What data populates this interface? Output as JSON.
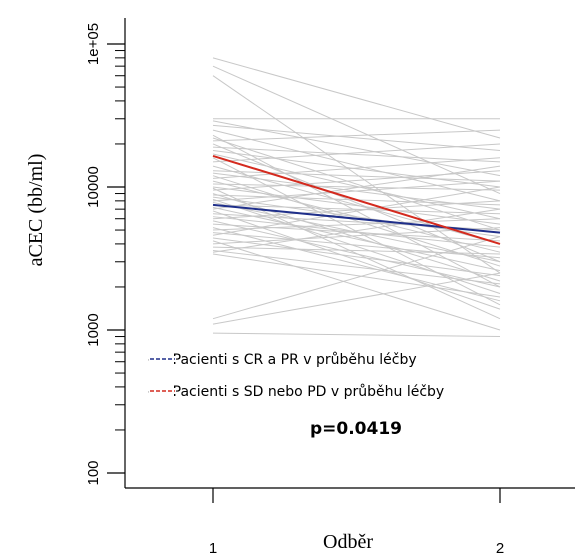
{
  "chart_data": {
    "type": "line",
    "xlabel": "Odběr",
    "ylabel": "aCEC (bb/ml)",
    "scale_y": "log10",
    "ylim": [
      80,
      140000
    ],
    "xlim": [
      0.7,
      2.35
    ],
    "x_ticks": [
      1,
      2
    ],
    "x_tick_labels": [
      "1",
      "2"
    ],
    "y_ticks": [
      100,
      1000,
      10000,
      100000
    ],
    "y_tick_labels": [
      "100",
      "1000",
      "10000",
      "1e+05"
    ],
    "grid": false,
    "legend_position": "bottom-left",
    "legend": [
      {
        "label": "---- Pacienti s CR a PR v průběhu léčby",
        "color": "#1f2f8a"
      },
      {
        "label": "---- Pacienti s SD nebo PD v průběhu léčby",
        "color": "#d42a1e"
      }
    ],
    "annotation": "p=0.0419",
    "series": [
      {
        "x": [
          1,
          2
        ],
        "values": [
          7500,
          4800
        ],
        "color": "#1f2f8a",
        "width": 2
      },
      {
        "x": [
          1,
          2
        ],
        "values": [
          16500,
          4000
        ],
        "color": "#d42a1e",
        "width": 2
      }
    ],
    "patient_color": "#c8c8c8",
    "patient_pairs": [
      [
        80000,
        22000
      ],
      [
        70000,
        9000
      ],
      [
        60000,
        2500
      ],
      [
        30000,
        30000
      ],
      [
        29000,
        12000
      ],
      [
        27000,
        18000
      ],
      [
        25000,
        8000
      ],
      [
        23000,
        2000
      ],
      [
        22000,
        5000
      ],
      [
        21000,
        25000
      ],
      [
        20000,
        3000
      ],
      [
        19000,
        15000
      ],
      [
        18000,
        10000
      ],
      [
        17000,
        6000
      ],
      [
        16000,
        1500
      ],
      [
        15000,
        20000
      ],
      [
        14000,
        4000
      ],
      [
        13000,
        11000
      ],
      [
        12500,
        7000
      ],
      [
        12000,
        2800
      ],
      [
        11500,
        16000
      ],
      [
        11000,
        3500
      ],
      [
        10500,
        9500
      ],
      [
        10000,
        5500
      ],
      [
        9800,
        1200
      ],
      [
        9500,
        13000
      ],
      [
        9000,
        2200
      ],
      [
        8800,
        7500
      ],
      [
        8500,
        4500
      ],
      [
        8200,
        1800
      ],
      [
        8000,
        11000
      ],
      [
        7800,
        3000
      ],
      [
        7500,
        6500
      ],
      [
        7200,
        2600
      ],
      [
        7000,
        14000
      ],
      [
        6800,
        1400
      ],
      [
        6500,
        5000
      ],
      [
        6200,
        3800
      ],
      [
        6000,
        8000
      ],
      [
        5800,
        2000
      ],
      [
        5500,
        4200
      ],
      [
        5200,
        1600
      ],
      [
        5000,
        6000
      ],
      [
        4800,
        3200
      ],
      [
        4600,
        10000
      ],
      [
        4400,
        2400
      ],
      [
        4200,
        1000
      ],
      [
        4000,
        5200
      ],
      [
        3800,
        3400
      ],
      [
        3600,
        2100
      ],
      [
        3500,
        7000
      ],
      [
        3400,
        1700
      ],
      [
        1200,
        4500
      ],
      [
        1100,
        2500
      ],
      [
        950,
        900
      ]
    ]
  }
}
